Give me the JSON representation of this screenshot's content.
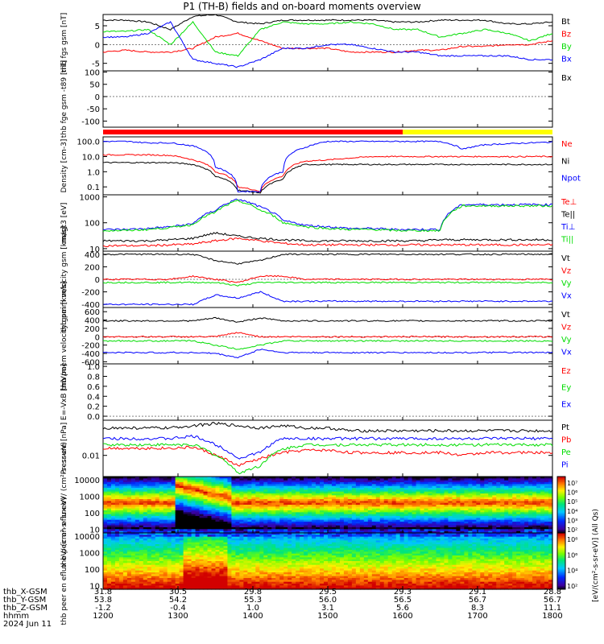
{
  "title": "P1 (TH-B) fields and on-board moments overview",
  "colors": {
    "black": "#000000",
    "red": "#ff0000",
    "green": "#00dd00",
    "blue": "#0000ff",
    "yellow": "#ffff00"
  },
  "chart_data": [
    {
      "type": "line",
      "id": "fgs",
      "ylabel": "thb fgs gsm [nT]",
      "ylim": [
        -7,
        8
      ],
      "ticks": [
        "5",
        "0",
        "-5"
      ],
      "tickvals": [
        5,
        0,
        -5
      ],
      "series": [
        {
          "name": "Bt",
          "color": "#000000",
          "values": [
            6.5,
            6.5,
            6,
            4,
            7.5,
            8,
            6,
            5.5,
            6.5,
            6.5,
            6.5,
            6.5,
            6.5,
            6,
            6,
            6.5,
            6.5,
            6.5,
            5.5,
            5.5,
            6
          ]
        },
        {
          "name": "Bz",
          "color": "#ff0000",
          "values": [
            -2,
            -1.5,
            -2,
            -2,
            -1,
            2,
            3,
            1,
            -1,
            -1,
            -1,
            -2,
            -2,
            -2,
            -1.5,
            -1.5,
            -0.5,
            -0.5,
            0,
            0,
            1
          ]
        },
        {
          "name": "By",
          "color": "#00dd00",
          "values": [
            3.5,
            3.5,
            4,
            0,
            6,
            -2,
            -3,
            4,
            6,
            5.5,
            5.5,
            6,
            5.5,
            4,
            4,
            2,
            3,
            4,
            3,
            1,
            3
          ]
        },
        {
          "name": "Bx",
          "color": "#0000ff",
          "values": [
            2,
            2,
            3,
            6,
            -4,
            -5,
            -6,
            -4,
            -1,
            -1,
            0,
            0,
            -1,
            -2,
            -2,
            -3,
            -3,
            -3,
            -3,
            -4,
            -4
          ]
        }
      ]
    },
    {
      "type": "line",
      "id": "fge",
      "ylabel": "thb fge gsm -t89 [nT]",
      "ylim": [
        -125,
        105
      ],
      "ticks": [
        "100",
        "50",
        "0",
        "-50",
        "-100"
      ],
      "tickvals": [
        100,
        50,
        0,
        -50,
        -100
      ],
      "series": [
        {
          "name": "Bx",
          "color": "#000000",
          "values": []
        }
      ]
    },
    {
      "type": "line",
      "id": "density",
      "ylabel": "Density [cm-3]",
      "scale": "log",
      "ylim": [
        0.03,
        200
      ],
      "ticks": [
        "100.0",
        "10.0",
        "1.0",
        "0.1"
      ],
      "tickvals": [
        100,
        10,
        1,
        0.1
      ],
      "series": [
        {
          "name": "Ne",
          "color": "#ff0000",
          "values": [
            13,
            13,
            13,
            12,
            6,
            1,
            0.1,
            0.05,
            0.5,
            5,
            6,
            8,
            10,
            10,
            10,
            10,
            10,
            10,
            10,
            10,
            10
          ]
        },
        {
          "name": "Ni",
          "color": "#000000",
          "values": [
            4,
            4,
            4,
            4,
            3,
            0.5,
            0.06,
            0.04,
            0.3,
            3,
            3,
            3,
            3,
            3,
            3,
            3,
            3,
            3,
            3,
            3,
            3
          ]
        },
        {
          "name": "Npot",
          "color": "#0000ff",
          "values": [
            100,
            100,
            80,
            80,
            50,
            2,
            0.05,
            0.05,
            1,
            40,
            100,
            100,
            100,
            100,
            100,
            100,
            30,
            60,
            70,
            80,
            90
          ]
        }
      ]
    },
    {
      "type": "line",
      "id": "temp",
      "ylabel": "magt3 [eV]",
      "scale": "log",
      "ylim": [
        8,
        1200
      ],
      "ticks": [
        "1000",
        "100",
        "10"
      ],
      "tickvals": [
        1000,
        100,
        10
      ],
      "series": [
        {
          "name": "Te⊥",
          "color": "#ff0000",
          "values": [
            13,
            13,
            13,
            14,
            15,
            20,
            25,
            20,
            16,
            14,
            14,
            14,
            14,
            14,
            14,
            14,
            14,
            14,
            14,
            14,
            14
          ]
        },
        {
          "name": "Te||",
          "color": "#000000",
          "values": [
            20,
            20,
            20,
            22,
            25,
            40,
            30,
            25,
            22,
            20,
            20,
            20,
            20,
            20,
            20,
            22,
            22,
            22,
            22,
            22,
            22
          ]
        },
        {
          "name": "Ti⊥",
          "color": "#0000ff",
          "values": [
            55,
            55,
            60,
            70,
            90,
            300,
            800,
            400,
            120,
            80,
            70,
            60,
            60,
            55,
            55,
            55,
            500,
            500,
            500,
            500,
            500
          ]
        },
        {
          "name": "Ti||",
          "color": "#00dd00",
          "values": [
            50,
            50,
            55,
            65,
            85,
            250,
            700,
            300,
            100,
            70,
            60,
            55,
            55,
            50,
            50,
            50,
            450,
            450,
            450,
            450,
            450
          ]
        }
      ]
    },
    {
      "type": "line",
      "id": "peim",
      "ylabel": "thb peim velocity gsm [km/s]",
      "ylim": [
        -450,
        450
      ],
      "ticks": [
        "400",
        "200",
        "0",
        "-200",
        "-400"
      ],
      "tickvals": [
        400,
        200,
        0,
        -200,
        -400
      ],
      "series": [
        {
          "name": "Vt",
          "color": "#000000",
          "values": [
            400,
            400,
            400,
            400,
            400,
            300,
            250,
            300,
            400,
            400,
            400,
            400,
            400,
            400,
            400,
            400,
            400,
            400,
            400,
            400,
            400
          ]
        },
        {
          "name": "Vz",
          "color": "#ff0000",
          "values": [
            0,
            0,
            0,
            0,
            50,
            0,
            -50,
            50,
            50,
            0,
            0,
            0,
            0,
            0,
            0,
            0,
            0,
            0,
            0,
            0,
            0
          ]
        },
        {
          "name": "Vy",
          "color": "#00dd00",
          "values": [
            -50,
            -50,
            -50,
            -50,
            -50,
            -50,
            -100,
            -50,
            -50,
            -50,
            -50,
            -50,
            -50,
            -50,
            -50,
            -50,
            -50,
            -50,
            -50,
            -50,
            -50
          ]
        },
        {
          "name": "Vx",
          "color": "#0000ff",
          "values": [
            -400,
            -400,
            -400,
            -400,
            -400,
            -250,
            -300,
            -200,
            -350,
            -350,
            -350,
            -350,
            -350,
            -350,
            -350,
            -350,
            -350,
            -350,
            -350,
            -350,
            -350
          ]
        }
      ]
    },
    {
      "type": "line",
      "id": "peem",
      "ylabel": "thb peem velocity gsm [km/s]",
      "ylim": [
        -650,
        700
      ],
      "ticks": [
        "600",
        "400",
        "200",
        "0",
        "-200",
        "-400",
        "-600"
      ],
      "tickvals": [
        600,
        400,
        200,
        0,
        -200,
        -400,
        -600
      ],
      "series": [
        {
          "name": "Vt",
          "color": "#000000",
          "values": [
            380,
            380,
            380,
            380,
            380,
            450,
            350,
            450,
            380,
            380,
            380,
            380,
            380,
            380,
            380,
            380,
            380,
            380,
            380,
            380,
            380
          ]
        },
        {
          "name": "Vz",
          "color": "#ff0000",
          "values": [
            0,
            0,
            0,
            0,
            0,
            0,
            100,
            0,
            0,
            0,
            0,
            0,
            0,
            0,
            0,
            0,
            0,
            0,
            0,
            0,
            0
          ]
        },
        {
          "name": "Vy",
          "color": "#00dd00",
          "values": [
            -100,
            -100,
            -100,
            -100,
            -100,
            -200,
            -300,
            -200,
            -100,
            -100,
            -100,
            -100,
            -100,
            -100,
            -100,
            -100,
            -100,
            -100,
            -100,
            -100,
            -100
          ]
        },
        {
          "name": "Vx",
          "color": "#0000ff",
          "values": [
            -380,
            -380,
            -380,
            -380,
            -380,
            -400,
            -500,
            -300,
            -380,
            -380,
            -380,
            -380,
            -380,
            -380,
            -380,
            -380,
            -380,
            -380,
            -380,
            -380,
            -380
          ]
        }
      ]
    },
    {
      "type": "line",
      "id": "efield",
      "ylabel": "E=-VxB [mV/m]",
      "ylim": [
        -0.08,
        1.05
      ],
      "ticks": [
        "1.0",
        "0.8",
        "0.6",
        "0.4",
        "0.2",
        "0.0"
      ],
      "tickvals": [
        1,
        0.8,
        0.6,
        0.4,
        0.2,
        0
      ],
      "series": [
        {
          "name": "Ez",
          "color": "#ff0000",
          "values": []
        },
        {
          "name": "Ey",
          "color": "#00dd00",
          "values": []
        },
        {
          "name": "Ex",
          "color": "#0000ff",
          "values": []
        }
      ]
    },
    {
      "type": "line",
      "id": "pressure",
      "ylabel": "Pressure [nPa]",
      "scale": "log",
      "ylim": [
        0.0025,
        0.1
      ],
      "ticks": [
        "0.01"
      ],
      "tickvals": [
        0.01
      ],
      "series": [
        {
          "name": "Pt",
          "color": "#000000",
          "values": [
            0.06,
            0.06,
            0.06,
            0.06,
            0.07,
            0.08,
            0.07,
            0.06,
            0.07,
            0.06,
            0.06,
            0.05,
            0.05,
            0.05,
            0.05,
            0.05,
            0.05,
            0.05,
            0.05,
            0.05,
            0.05
          ]
        },
        {
          "name": "Pb",
          "color": "#ff0000",
          "values": [
            0.016,
            0.016,
            0.016,
            0.016,
            0.017,
            0.01,
            0.005,
            0.008,
            0.012,
            0.014,
            0.014,
            0.012,
            0.012,
            0.012,
            0.012,
            0.012,
            0.01,
            0.012,
            0.012,
            0.012,
            0.012
          ]
        },
        {
          "name": "Pe",
          "color": "#00dd00",
          "values": [
            0.02,
            0.02,
            0.02,
            0.02,
            0.02,
            0.01,
            0.003,
            0.005,
            0.015,
            0.02,
            0.02,
            0.02,
            0.02,
            0.02,
            0.02,
            0.02,
            0.02,
            0.02,
            0.02,
            0.02,
            0.02
          ]
        },
        {
          "name": "Pi",
          "color": "#0000ff",
          "values": [
            0.03,
            0.03,
            0.03,
            0.03,
            0.035,
            0.02,
            0.008,
            0.012,
            0.03,
            0.03,
            0.03,
            0.03,
            0.03,
            0.03,
            0.03,
            0.03,
            0.03,
            0.03,
            0.03,
            0.03,
            0.03
          ]
        }
      ]
    },
    {
      "type": "heatmap",
      "id": "peir",
      "ylabel": "thb peir en eflux eV/ (cm²-s- sr-eV)",
      "scale": "log",
      "ylim": [
        6,
        16000
      ],
      "ticks": [
        "10000",
        "1000",
        "100",
        "10"
      ],
      "tickvals": [
        10000,
        1000,
        100,
        10
      ],
      "colorbar": {
        "label": "[eV/(cm²-s-sr-eV)] (All Qs)",
        "ticks": [
          "10⁷",
          "10⁶",
          "10⁵",
          "10⁴",
          "10³",
          "10²"
        ]
      }
    },
    {
      "type": "heatmap",
      "id": "peer",
      "ylabel": "thb peer en eflux eV/ (cm²-s- sr-eV)",
      "scale": "log",
      "ylim": [
        6,
        16000
      ],
      "ticks": [
        "10000",
        "1000",
        "100",
        "10"
      ],
      "tickvals": [
        10000,
        1000,
        100,
        10
      ],
      "colorbar": {
        "label": "",
        "ticks": [
          "10⁸",
          "10⁶",
          "10⁴",
          "10²"
        ]
      }
    }
  ],
  "time_axis": {
    "start": "1200",
    "end": "1800",
    "row_labels": [
      "thb_X-GSM",
      "thb_Y-GSM",
      "thb_Z-GSM",
      "hhmm",
      "2024 Jun 11"
    ],
    "ticks": [
      {
        "hhmm": "1200",
        "x": "31.8",
        "y": "53.8",
        "z": "-1.2"
      },
      {
        "hhmm": "1300",
        "x": "30.5",
        "y": "54.2",
        "z": "-0.4"
      },
      {
        "hhmm": "1400",
        "x": "29.8",
        "y": "55.3",
        "z": "1.0"
      },
      {
        "hhmm": "1500",
        "x": "29.5",
        "y": "56.0",
        "z": "3.1"
      },
      {
        "hhmm": "1600",
        "x": "29.3",
        "y": "56.5",
        "z": "5.6"
      },
      {
        "hhmm": "1700",
        "x": "29.1",
        "y": "56.7",
        "z": "8.3"
      },
      {
        "hhmm": "1800",
        "x": "28.8",
        "y": "56.7",
        "z": "11.1"
      }
    ]
  },
  "mode_bar": {
    "segments": [
      {
        "from": "1200",
        "to": "1600",
        "color": "#ff0000"
      },
      {
        "from": "1600",
        "to": "1800",
        "color": "#ffff00"
      }
    ]
  }
}
